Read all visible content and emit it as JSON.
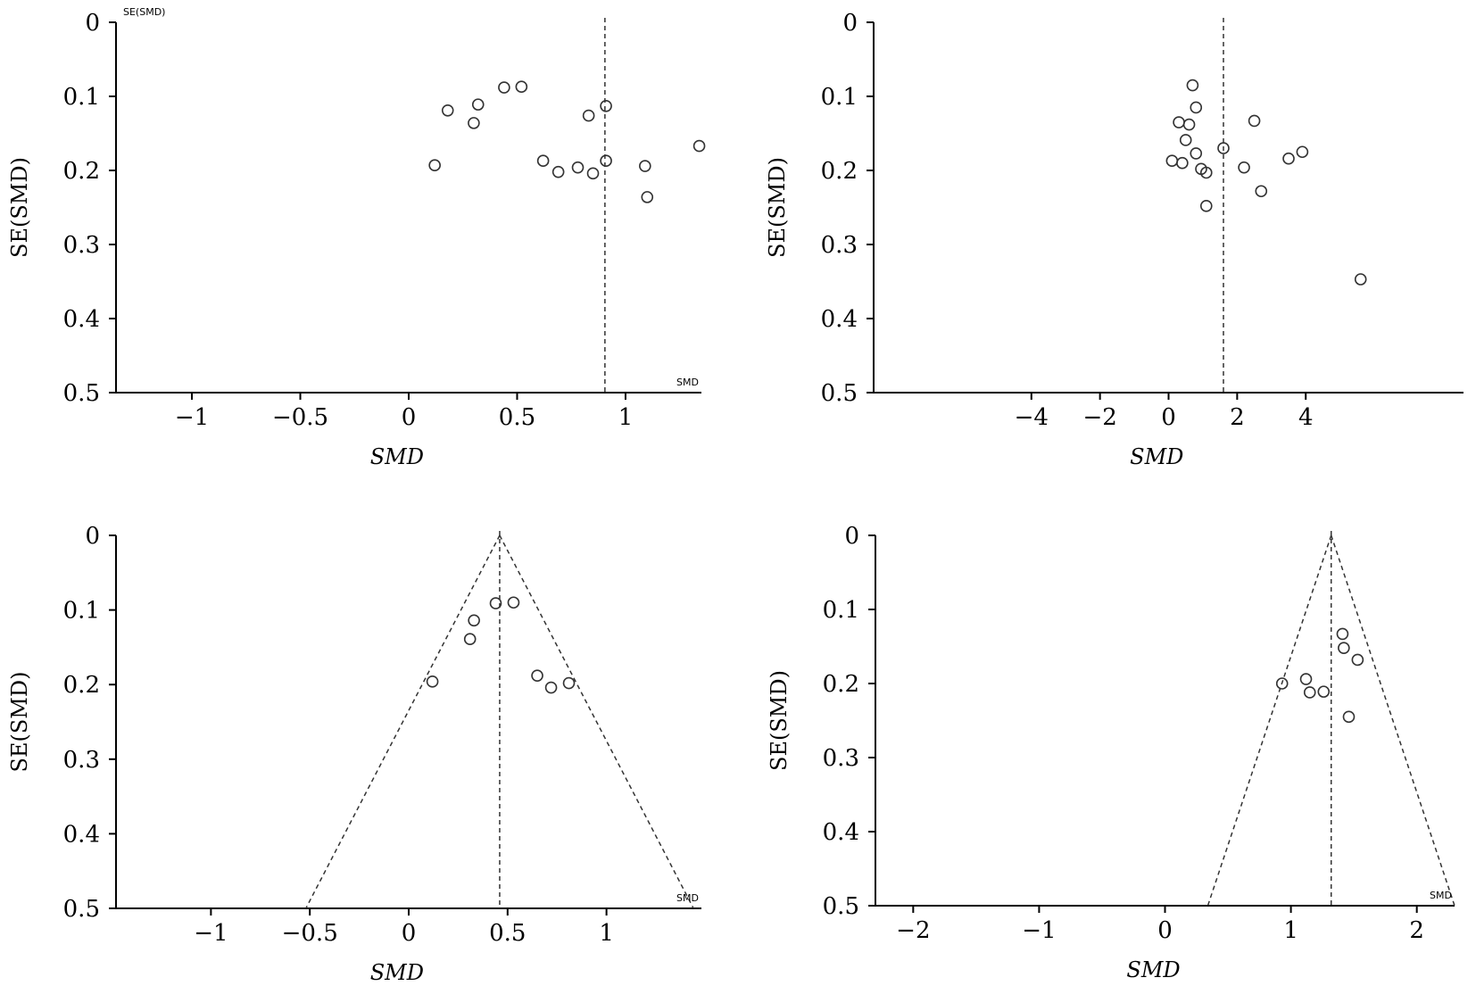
{
  "colors": {
    "axis": "#000000",
    "marker": "#333333",
    "reference_line": "#333333"
  },
  "chart_data": [
    {
      "type": "scatter",
      "subtype": "funnel",
      "xlabel": "SMD",
      "ylabel": "SE(SMD)",
      "corner_labels": [
        "SE(SMD)",
        "SMD"
      ],
      "xlim": [
        -1.35,
        1.35
      ],
      "ylim": [
        0,
        0.5
      ],
      "y_inverted": true,
      "xticks": [
        -1,
        -0.5,
        0,
        0.5,
        1
      ],
      "xtick_labels": [
        "−1",
        "−0.5",
        "0",
        "0.5",
        "1"
      ],
      "yticks": [
        0,
        0.1,
        0.2,
        0.3,
        0.4,
        0.5
      ],
      "ytick_labels": [
        "0",
        "0.1",
        "0.2",
        "0.3",
        "0.4",
        "0.5"
      ],
      "pooled_effect": 0.905,
      "funnel_lines": false,
      "points": [
        {
          "x": 0.12,
          "y": 0.193
        },
        {
          "x": 0.18,
          "y": 0.119
        },
        {
          "x": 0.3,
          "y": 0.136
        },
        {
          "x": 0.32,
          "y": 0.111
        },
        {
          "x": 0.44,
          "y": 0.088
        },
        {
          "x": 0.52,
          "y": 0.087
        },
        {
          "x": 0.62,
          "y": 0.187
        },
        {
          "x": 0.69,
          "y": 0.202
        },
        {
          "x": 0.78,
          "y": 0.196
        },
        {
          "x": 0.83,
          "y": 0.126
        },
        {
          "x": 0.85,
          "y": 0.204
        },
        {
          "x": 0.91,
          "y": 0.113
        },
        {
          "x": 0.91,
          "y": 0.187
        },
        {
          "x": 1.09,
          "y": 0.194
        },
        {
          "x": 1.1,
          "y": 0.236
        },
        {
          "x": 1.34,
          "y": 0.167
        }
      ]
    },
    {
      "type": "scatter",
      "subtype": "funnel",
      "xlabel": "SMD",
      "ylabel": "SE(SMD)",
      "corner_labels": [],
      "xlim": [
        -8.6,
        8.6
      ],
      "ylim": [
        0,
        0.5
      ],
      "y_inverted": true,
      "xticks": [
        -4,
        -2,
        0,
        2,
        4
      ],
      "xtick_labels": [
        "−4",
        "−2",
        "0",
        "2",
        "4"
      ],
      "yticks": [
        0,
        0.1,
        0.2,
        0.3,
        0.4,
        0.5
      ],
      "ytick_labels": [
        "0",
        "0.1",
        "0.2",
        "0.3",
        "0.4",
        "0.5"
      ],
      "pooled_effect": 1.6,
      "funnel_lines": false,
      "points": [
        {
          "x": 0.1,
          "y": 0.187
        },
        {
          "x": 0.3,
          "y": 0.135
        },
        {
          "x": 0.4,
          "y": 0.19
        },
        {
          "x": 0.5,
          "y": 0.159
        },
        {
          "x": 0.6,
          "y": 0.138
        },
        {
          "x": 0.7,
          "y": 0.085
        },
        {
          "x": 0.8,
          "y": 0.115
        },
        {
          "x": 0.8,
          "y": 0.177
        },
        {
          "x": 0.95,
          "y": 0.198
        },
        {
          "x": 1.1,
          "y": 0.203
        },
        {
          "x": 1.1,
          "y": 0.248
        },
        {
          "x": 1.6,
          "y": 0.17
        },
        {
          "x": 2.2,
          "y": 0.196
        },
        {
          "x": 2.5,
          "y": 0.133
        },
        {
          "x": 2.7,
          "y": 0.228
        },
        {
          "x": 3.5,
          "y": 0.184
        },
        {
          "x": 3.9,
          "y": 0.175
        },
        {
          "x": 5.6,
          "y": 0.347
        }
      ]
    },
    {
      "type": "scatter",
      "subtype": "funnel",
      "xlabel": "SMD",
      "ylabel": "SE(SMD)",
      "corner_labels": [
        "SMD"
      ],
      "xlim": [
        -1.48,
        1.48
      ],
      "ylim": [
        0,
        0.5
      ],
      "y_inverted": true,
      "xticks": [
        -1,
        -0.5,
        0,
        0.5,
        1
      ],
      "xtick_labels": [
        "−1",
        "−0.5",
        "0",
        "0.5",
        "1"
      ],
      "yticks": [
        0,
        0.1,
        0.2,
        0.3,
        0.4,
        0.5
      ],
      "ytick_labels": [
        "0",
        "0.1",
        "0.2",
        "0.3",
        "0.4",
        "0.5"
      ],
      "pooled_effect": 0.46,
      "funnel_lines": true,
      "points": [
        {
          "x": 0.12,
          "y": 0.196
        },
        {
          "x": 0.31,
          "y": 0.139
        },
        {
          "x": 0.33,
          "y": 0.114
        },
        {
          "x": 0.44,
          "y": 0.091
        },
        {
          "x": 0.53,
          "y": 0.09
        },
        {
          "x": 0.65,
          "y": 0.188
        },
        {
          "x": 0.72,
          "y": 0.204
        },
        {
          "x": 0.81,
          "y": 0.198
        }
      ]
    },
    {
      "type": "scatter",
      "subtype": "funnel",
      "xlabel": "SMD",
      "ylabel": "SE(SMD)",
      "corner_labels": [
        "SMD"
      ],
      "xlim": [
        -2.3,
        2.3
      ],
      "ylim": [
        0,
        0.5
      ],
      "y_inverted": true,
      "xticks": [
        -2,
        -1,
        0,
        1,
        2
      ],
      "xtick_labels": [
        "−2",
        "−1",
        "0",
        "1",
        "2"
      ],
      "yticks": [
        0,
        0.1,
        0.2,
        0.3,
        0.4,
        0.5
      ],
      "ytick_labels": [
        "0",
        "0.1",
        "0.2",
        "0.3",
        "0.4",
        "0.5"
      ],
      "pooled_effect": 1.32,
      "funnel_lines": true,
      "points": [
        {
          "x": 0.93,
          "y": 0.2
        },
        {
          "x": 1.12,
          "y": 0.194
        },
        {
          "x": 1.15,
          "y": 0.212
        },
        {
          "x": 1.26,
          "y": 0.211
        },
        {
          "x": 1.41,
          "y": 0.133
        },
        {
          "x": 1.42,
          "y": 0.152
        },
        {
          "x": 1.46,
          "y": 0.245
        },
        {
          "x": 1.53,
          "y": 0.168
        }
      ]
    }
  ]
}
